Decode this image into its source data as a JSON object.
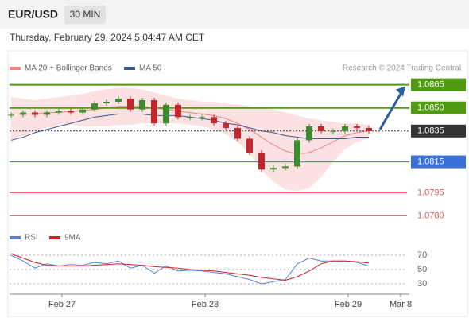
{
  "header": {
    "symbol": "EUR/USD",
    "interval": "30 MIN",
    "datetime": "Thursday, February 29, 2024 5:04:47 AM CET"
  },
  "chart_data": [
    {
      "type": "candlestick",
      "copyright": "Research © 2024 Trading Central",
      "x_labels": [
        "Feb 27",
        "Feb 28",
        "Feb 29",
        "Mar 8"
      ],
      "ylim": [
        1.0773,
        1.0871
      ],
      "up_color": "#3d8b2f",
      "down_color": "#c0282d",
      "closes": [
        1.08455,
        1.0847,
        1.08455,
        1.0847,
        1.0848,
        1.0847,
        1.0849,
        1.0853,
        1.0854,
        1.0856,
        1.0849,
        1.0855,
        1.084,
        1.0852,
        1.0844,
        1.0844,
        1.0844,
        1.084,
        1.0837,
        1.083,
        1.0821,
        1.081,
        1.0811,
        1.0812,
        1.0829,
        1.0838,
        1.0835,
        1.0835,
        1.0838,
        1.0837,
        1.0835
      ],
      "series": [
        {
          "name": "MA 20 + Bollinger Bands",
          "color": "#f08080",
          "values": [
            1.0846,
            1.0846,
            1.0846,
            1.0847,
            1.0847,
            1.0848,
            1.0848,
            1.0849,
            1.085,
            1.0851,
            1.0851,
            1.0851,
            1.085,
            1.0849,
            1.0848,
            1.0847,
            1.0846,
            1.0845,
            1.0843,
            1.084,
            1.0836,
            1.0831,
            1.0826,
            1.0822,
            1.082,
            1.0821,
            1.0824,
            1.0828,
            1.0832,
            1.0834,
            1.0835
          ],
          "upper": [
            1.0857,
            1.0856,
            1.0855,
            1.0856,
            1.0857,
            1.0858,
            1.0859,
            1.0861,
            1.0862,
            1.0863,
            1.0863,
            1.0862,
            1.086,
            1.0858,
            1.0856,
            1.0855,
            1.0854,
            1.0854,
            1.0853,
            1.0852,
            1.0851,
            1.085,
            1.0849,
            1.0847,
            1.0845,
            1.0843,
            1.0842,
            1.0841,
            1.084,
            1.084,
            1.0839
          ],
          "lower": [
            1.0829,
            1.0832,
            1.0835,
            1.0837,
            1.0838,
            1.0839,
            1.0838,
            1.0838,
            1.0838,
            1.0839,
            1.0839,
            1.084,
            1.084,
            1.084,
            1.084,
            1.0839,
            1.0838,
            1.0836,
            1.0833,
            1.0828,
            1.082,
            1.081,
            1.0802,
            1.0797,
            1.0796,
            1.0798,
            1.0805,
            1.0815,
            1.0823,
            1.0828,
            1.083
          ]
        },
        {
          "name": "MA 50",
          "color": "#3f5a8c",
          "values": [
            1.0829,
            1.0831,
            1.0834,
            1.0836,
            1.0838,
            1.084,
            1.0842,
            1.0844,
            1.0845,
            1.0846,
            1.0846,
            1.0846,
            1.0845,
            1.0845,
            1.0845,
            1.0844,
            1.0843,
            1.0842,
            1.084,
            1.0839,
            1.0837,
            1.0835,
            1.0834,
            1.0832,
            1.0831,
            1.083,
            1.083,
            1.083,
            1.083,
            1.0831,
            1.0831
          ]
        }
      ],
      "levels": {
        "values": [
          1.0865,
          1.085,
          1.0835,
          1.0815,
          1.0795,
          1.078
        ],
        "value_labels": [
          "1.0865",
          "1.0850",
          "1.0835",
          "1.0815",
          "1.0795",
          "1.0780"
        ],
        "colors": [
          "#4f9a10",
          "#4f9a10",
          "#333333",
          "#3a6fd8",
          "#e05a5a",
          "#e05a5a"
        ]
      }
    },
    {
      "type": "line",
      "ylim": [
        20,
        80
      ],
      "yticks": [
        70,
        50,
        30
      ],
      "series": [
        {
          "name": "RSI",
          "color": "#5b7fd6",
          "values": [
            70,
            62,
            52,
            58,
            55,
            57,
            56,
            60,
            58,
            62,
            52,
            56,
            45,
            55,
            48,
            49,
            48,
            46,
            44,
            40,
            36,
            30,
            33,
            36,
            58,
            66,
            62,
            62,
            62,
            60,
            55
          ]
        },
        {
          "name": "9MA",
          "color": "#d0202a",
          "values": [
            72,
            66,
            60,
            56,
            55,
            55,
            55,
            56,
            57,
            58,
            57,
            56,
            54,
            53,
            52,
            50,
            49,
            48,
            46,
            44,
            42,
            39,
            37,
            35,
            40,
            48,
            58,
            62,
            62,
            61,
            59
          ]
        }
      ]
    }
  ]
}
